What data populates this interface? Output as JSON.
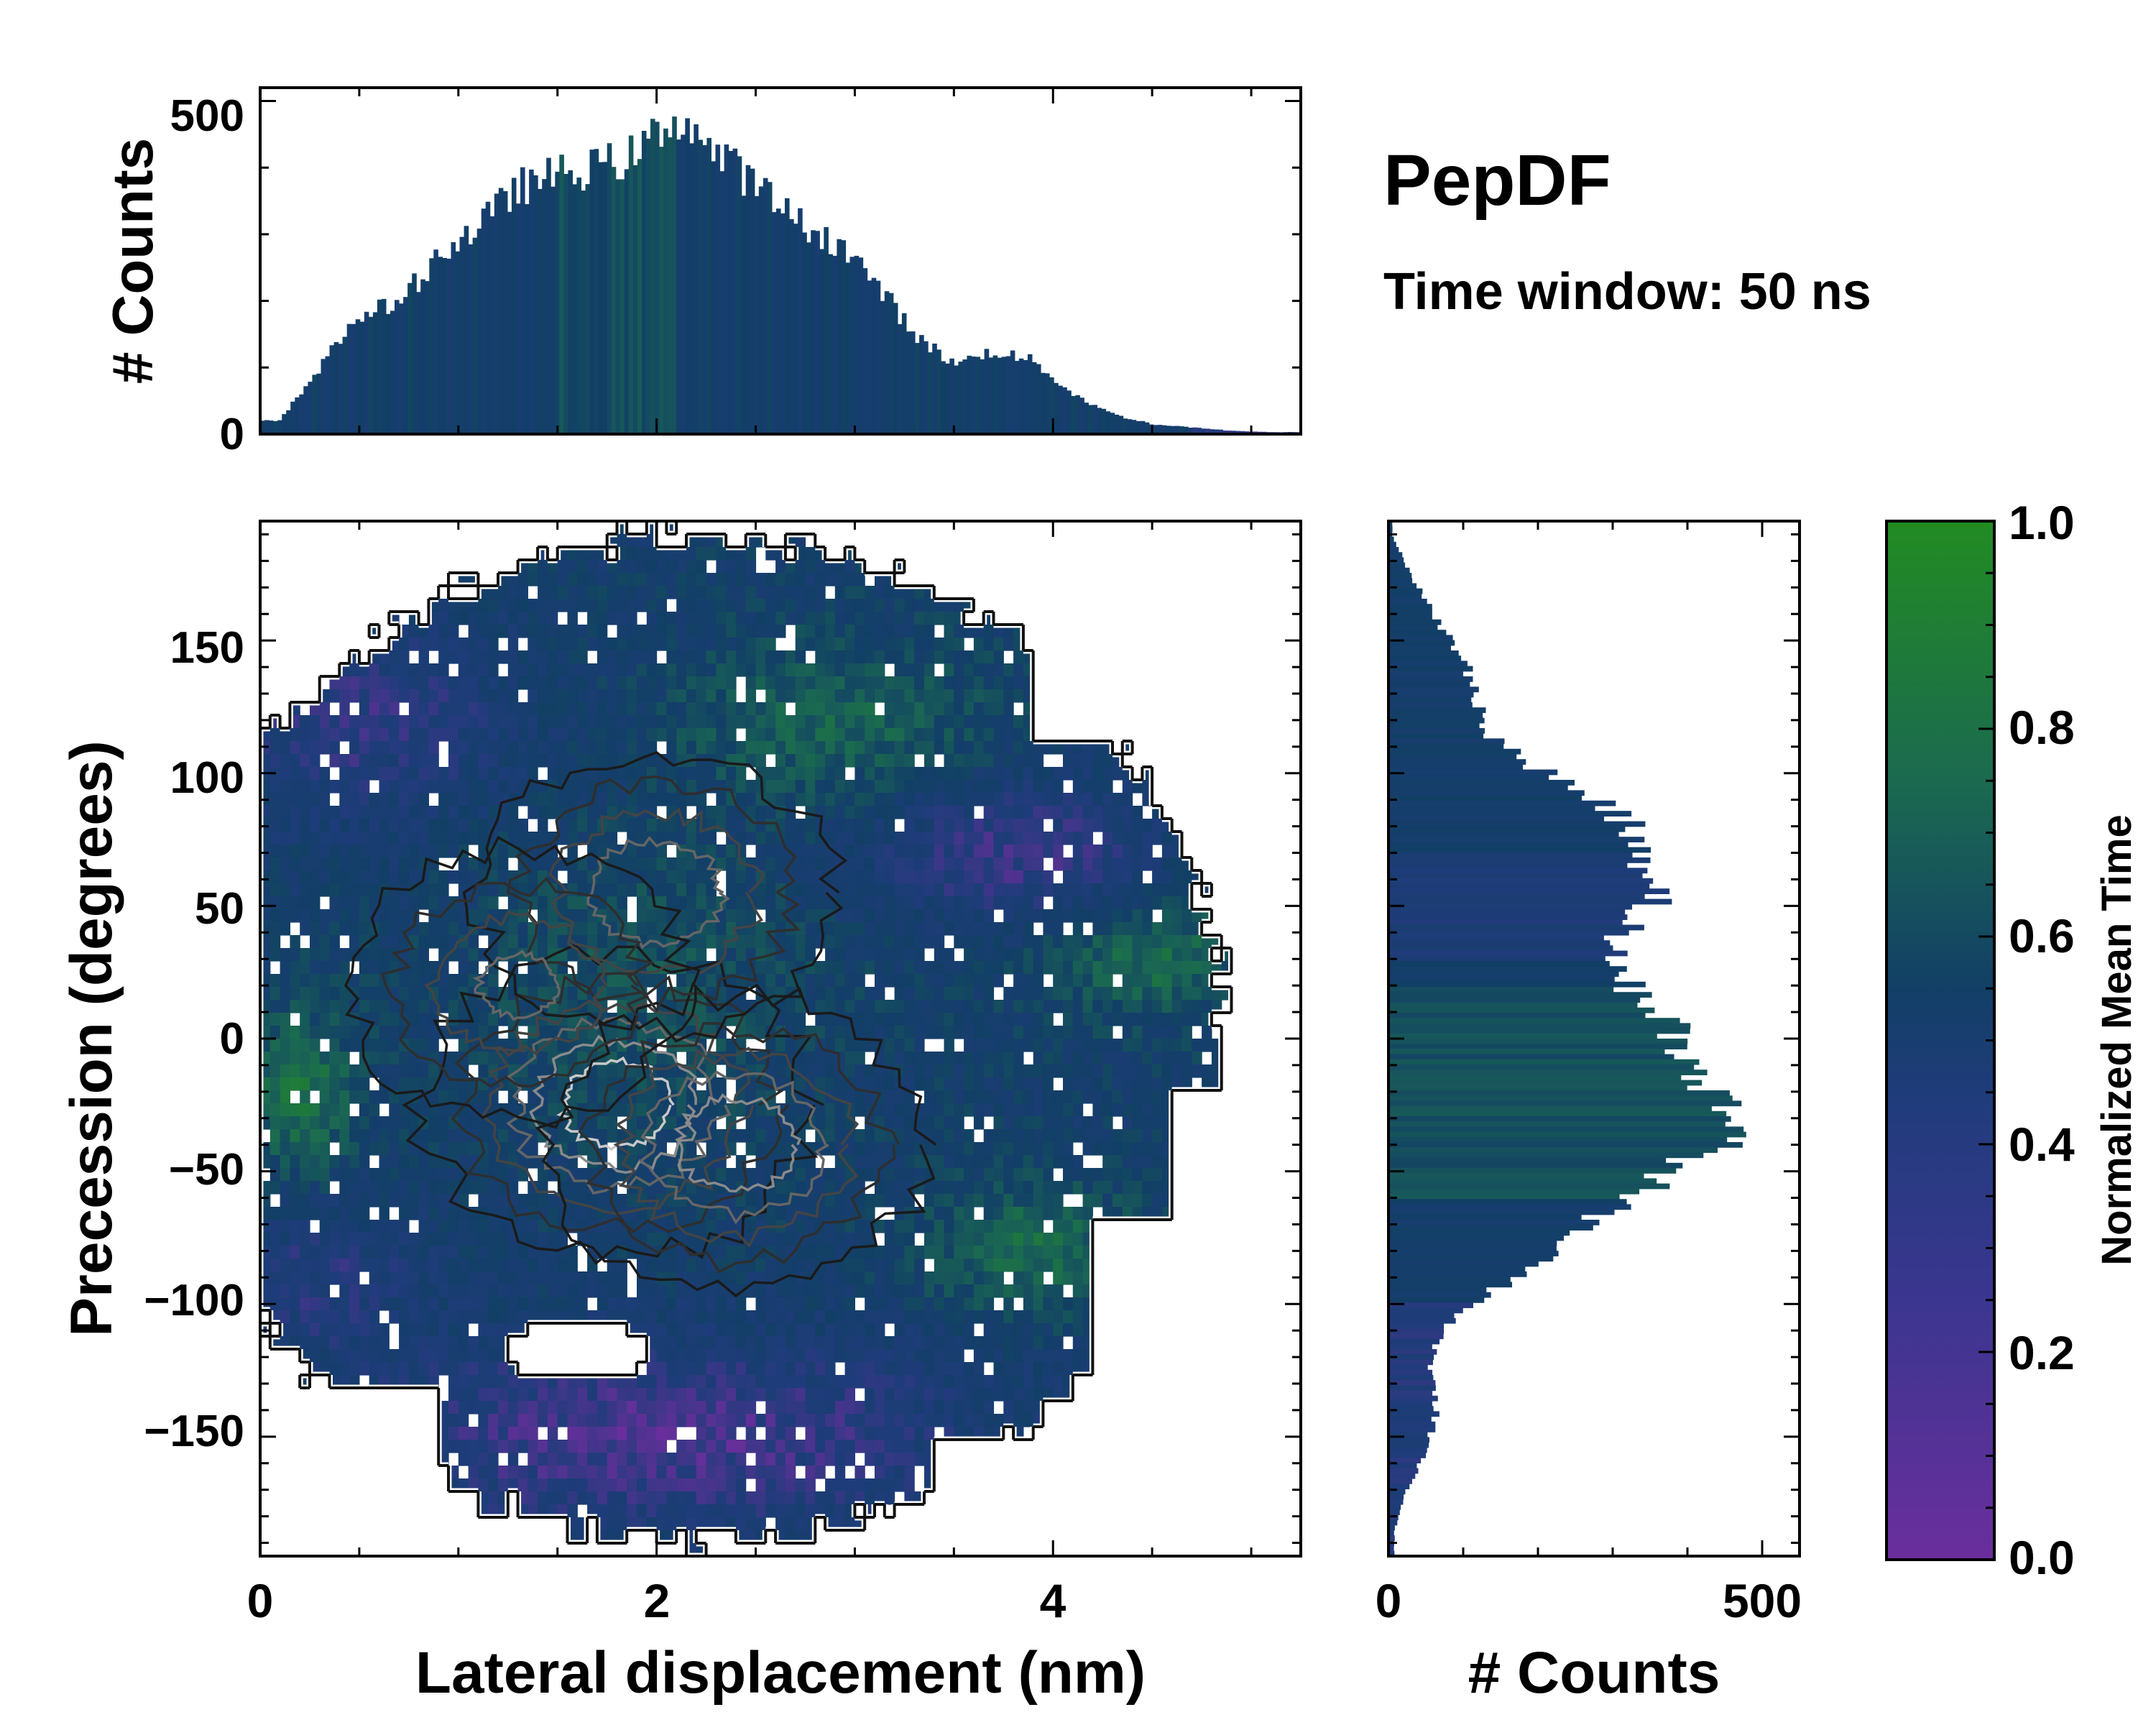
{
  "title": "PepDF",
  "subtitle": "Time window: 50 ns",
  "colors": {
    "purple": "#6a2e9c",
    "blue": "#1f3c7a",
    "navy": "#123f66",
    "teal": "#1b6a50",
    "green": "#228b22",
    "contour_dark": "#1a1a1a",
    "contour_light": "#c8c8c8"
  },
  "chart_data": [
    {
      "id": "top-histogram",
      "type": "bar",
      "title": "",
      "xlabel": "",
      "ylabel": "# Counts",
      "xlim": [
        0,
        5.25
      ],
      "ylim": [
        0,
        520
      ],
      "yticks": [
        0,
        500
      ],
      "ytick_labels": [
        "0",
        "500"
      ],
      "description": "Marginal histogram of lateral displacement, colored by normalized mean time",
      "series": [
        {
          "name": "counts",
          "x": [
            0.1,
            0.3,
            0.5,
            0.7,
            0.9,
            1.1,
            1.3,
            1.5,
            1.7,
            1.9,
            2.1,
            2.3,
            2.5,
            2.7,
            2.9,
            3.1,
            3.3,
            3.5,
            3.7,
            3.9,
            4.1,
            4.3,
            4.5,
            4.7,
            4.9,
            5.1
          ],
          "values": [
            20,
            100,
            180,
            195,
            270,
            310,
            370,
            390,
            400,
            420,
            480,
            420,
            375,
            320,
            290,
            230,
            150,
            105,
            125,
            110,
            60,
            30,
            15,
            10,
            5,
            3
          ]
        }
      ]
    },
    {
      "id": "main-heatmap",
      "type": "heatmap",
      "title": "",
      "xlabel": "Lateral displacement (nm)",
      "ylabel": "Precession (degrees)",
      "xlim": [
        0,
        5.25
      ],
      "ylim": [
        -195,
        195
      ],
      "xticks": [
        0,
        2,
        4
      ],
      "xtick_labels": [
        "0",
        "2",
        "4"
      ],
      "yticks": [
        150,
        100,
        50,
        0,
        -50,
        -100,
        -150
      ],
      "ytick_labels": [
        "150",
        "100",
        "50",
        "0",
        "−50",
        "−100",
        "−150"
      ],
      "description": "2D density of lateral displacement vs precession, colored by normalized mean time with density contours",
      "density_peaks": [
        {
          "x": 1.8,
          "y": -25,
          "weight": 1.0
        },
        {
          "x": 2.4,
          "y": -40,
          "weight": 0.85
        },
        {
          "x": 2.0,
          "y": 55,
          "weight": 0.7
        },
        {
          "x": 1.3,
          "y": 20,
          "weight": 0.6
        }
      ]
    },
    {
      "id": "right-histogram",
      "type": "bar",
      "orientation": "horizontal",
      "title": "",
      "xlabel": "# Counts",
      "ylabel": "",
      "xlim": [
        0,
        550
      ],
      "ylim": [
        -195,
        195
      ],
      "xticks": [
        0,
        500
      ],
      "xtick_labels": [
        "0",
        "500"
      ],
      "description": "Marginal histogram of precession, colored by normalized mean time",
      "series": [
        {
          "name": "counts",
          "y": [
            190,
            175,
            160,
            145,
            130,
            115,
            100,
            85,
            70,
            55,
            40,
            25,
            10,
            -5,
            -20,
            -35,
            -50,
            -65,
            -80,
            -95,
            -110,
            -125,
            -140,
            -155,
            -170,
            -185
          ],
          "values": [
            5,
            30,
            60,
            95,
            120,
            130,
            210,
            310,
            340,
            370,
            310,
            300,
            370,
            390,
            430,
            480,
            380,
            290,
            230,
            140,
            70,
            55,
            65,
            50,
            25,
            8
          ]
        }
      ]
    },
    {
      "id": "colorbar",
      "type": "colorbar",
      "label": "Normalized Mean Time",
      "range": [
        0.0,
        1.0
      ],
      "ticks": [
        0.0,
        0.2,
        0.4,
        0.6,
        0.8,
        1.0
      ],
      "tick_labels": [
        "0.0",
        "0.2",
        "0.4",
        "0.6",
        "0.8",
        "1.0"
      ],
      "colormap": [
        "#6a2e9c",
        "#1f3c7a",
        "#123f66",
        "#1b6a50",
        "#228b22"
      ]
    }
  ]
}
